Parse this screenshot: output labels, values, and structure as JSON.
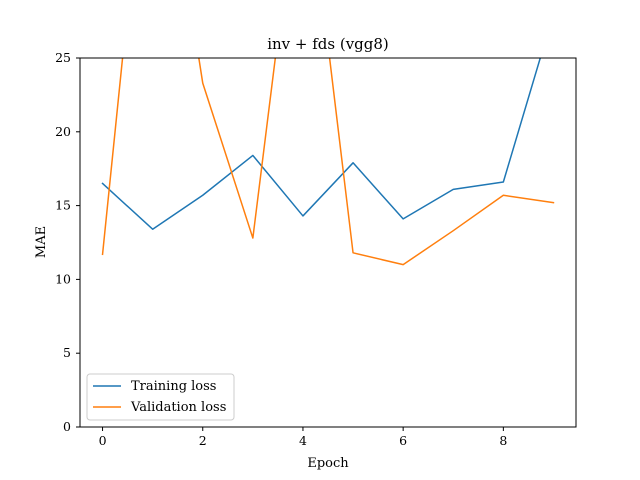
{
  "chart_data": {
    "type": "line",
    "title": "inv + fds (vgg8)",
    "xlabel": "Epoch",
    "ylabel": "MAE",
    "x": [
      0,
      1,
      2,
      3,
      4,
      5,
      6,
      7,
      8,
      9
    ],
    "xlim": [
      -0.45,
      9.45
    ],
    "ylim": [
      0,
      25
    ],
    "xticks": [
      0,
      2,
      4,
      6,
      8
    ],
    "yticks": [
      0,
      5,
      10,
      15,
      20,
      25
    ],
    "grid": false,
    "legend_position": "lower-left",
    "series": [
      {
        "name": "Training loss",
        "color": "#1f77b4",
        "values": [
          16.5,
          13.4,
          15.7,
          18.4,
          14.3,
          17.9,
          14.1,
          16.1,
          16.6,
          28.0
        ]
      },
      {
        "name": "Validation loss",
        "color": "#ff7f0e",
        "values": [
          11.7,
          45.0,
          23.3,
          12.8,
          40.0,
          11.8,
          11.0,
          13.3,
          15.7,
          15.2
        ]
      }
    ]
  }
}
